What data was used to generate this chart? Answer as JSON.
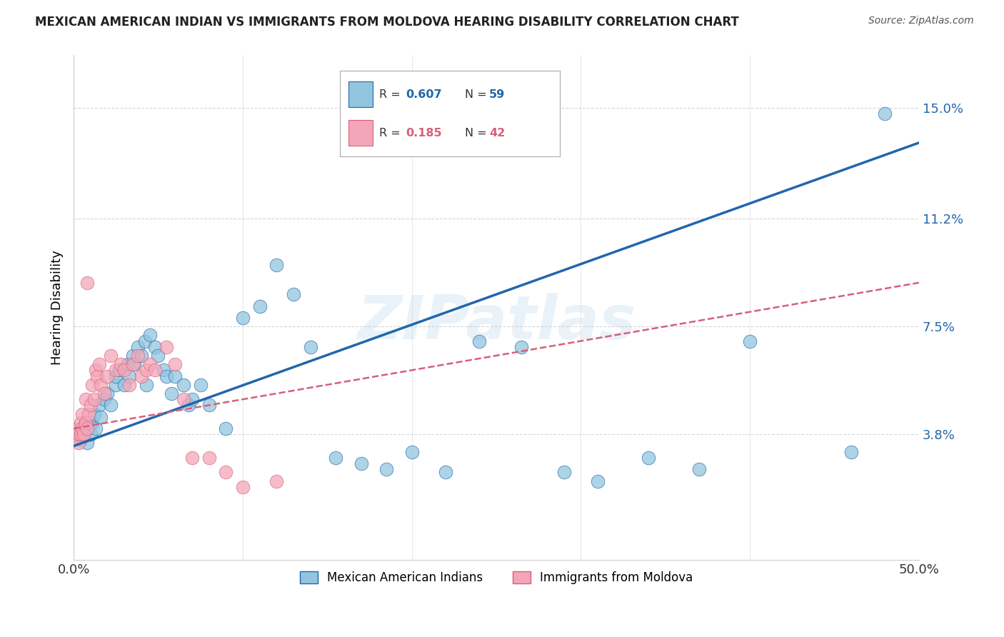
{
  "title": "MEXICAN AMERICAN INDIAN VS IMMIGRANTS FROM MOLDOVA HEARING DISABILITY CORRELATION CHART",
  "source": "Source: ZipAtlas.com",
  "ylabel": "Hearing Disability",
  "xlim": [
    0.0,
    0.5
  ],
  "ylim": [
    -0.005,
    0.168
  ],
  "yticks": [
    0.038,
    0.075,
    0.112,
    0.15
  ],
  "ytick_labels": [
    "3.8%",
    "7.5%",
    "11.2%",
    "15.0%"
  ],
  "xticks": [
    0.0,
    0.1,
    0.2,
    0.3,
    0.4,
    0.5
  ],
  "xtick_labels": [
    "0.0%",
    "",
    "",
    "",
    "",
    "50.0%"
  ],
  "color_blue": "#92c5de",
  "color_pink": "#f4a6b8",
  "line_blue": "#2166ac",
  "line_pink": "#d6607a",
  "watermark": "ZIPatlas",
  "blue_scatter_x": [
    0.003,
    0.004,
    0.005,
    0.006,
    0.007,
    0.008,
    0.01,
    0.011,
    0.012,
    0.013,
    0.015,
    0.016,
    0.018,
    0.02,
    0.022,
    0.025,
    0.025,
    0.027,
    0.03,
    0.032,
    0.033,
    0.035,
    0.036,
    0.038,
    0.04,
    0.042,
    0.043,
    0.045,
    0.048,
    0.05,
    0.053,
    0.055,
    0.058,
    0.06,
    0.065,
    0.068,
    0.07,
    0.075,
    0.08,
    0.09,
    0.1,
    0.11,
    0.12,
    0.13,
    0.14,
    0.155,
    0.17,
    0.185,
    0.2,
    0.22,
    0.24,
    0.265,
    0.29,
    0.31,
    0.34,
    0.37,
    0.4,
    0.46,
    0.48
  ],
  "blue_scatter_y": [
    0.038,
    0.036,
    0.04,
    0.038,
    0.042,
    0.035,
    0.038,
    0.042,
    0.045,
    0.04,
    0.048,
    0.044,
    0.05,
    0.052,
    0.048,
    0.055,
    0.058,
    0.06,
    0.055,
    0.062,
    0.058,
    0.065,
    0.062,
    0.068,
    0.065,
    0.07,
    0.055,
    0.072,
    0.068,
    0.065,
    0.06,
    0.058,
    0.052,
    0.058,
    0.055,
    0.048,
    0.05,
    0.055,
    0.048,
    0.04,
    0.078,
    0.082,
    0.096,
    0.086,
    0.068,
    0.03,
    0.028,
    0.026,
    0.032,
    0.025,
    0.07,
    0.068,
    0.025,
    0.022,
    0.03,
    0.026,
    0.07,
    0.032,
    0.148
  ],
  "pink_scatter_x": [
    0.001,
    0.002,
    0.003,
    0.003,
    0.004,
    0.004,
    0.005,
    0.005,
    0.006,
    0.007,
    0.007,
    0.008,
    0.009,
    0.01,
    0.011,
    0.012,
    0.013,
    0.014,
    0.015,
    0.016,
    0.018,
    0.02,
    0.022,
    0.025,
    0.028,
    0.03,
    0.033,
    0.035,
    0.038,
    0.04,
    0.043,
    0.045,
    0.048,
    0.055,
    0.06,
    0.065,
    0.07,
    0.08,
    0.09,
    0.1,
    0.12,
    0.008
  ],
  "pink_scatter_y": [
    0.038,
    0.04,
    0.035,
    0.038,
    0.042,
    0.038,
    0.04,
    0.045,
    0.038,
    0.042,
    0.05,
    0.04,
    0.045,
    0.048,
    0.055,
    0.05,
    0.06,
    0.058,
    0.062,
    0.055,
    0.052,
    0.058,
    0.065,
    0.06,
    0.062,
    0.06,
    0.055,
    0.062,
    0.065,
    0.058,
    0.06,
    0.062,
    0.06,
    0.068,
    0.062,
    0.05,
    0.03,
    0.03,
    0.025,
    0.02,
    0.022,
    0.09
  ],
  "blue_line_x0": 0.0,
  "blue_line_x1": 0.5,
  "blue_line_y0": 0.034,
  "blue_line_y1": 0.138,
  "pink_line_x0": 0.0,
  "pink_line_x1": 0.5,
  "pink_line_y0": 0.04,
  "pink_line_y1": 0.09
}
